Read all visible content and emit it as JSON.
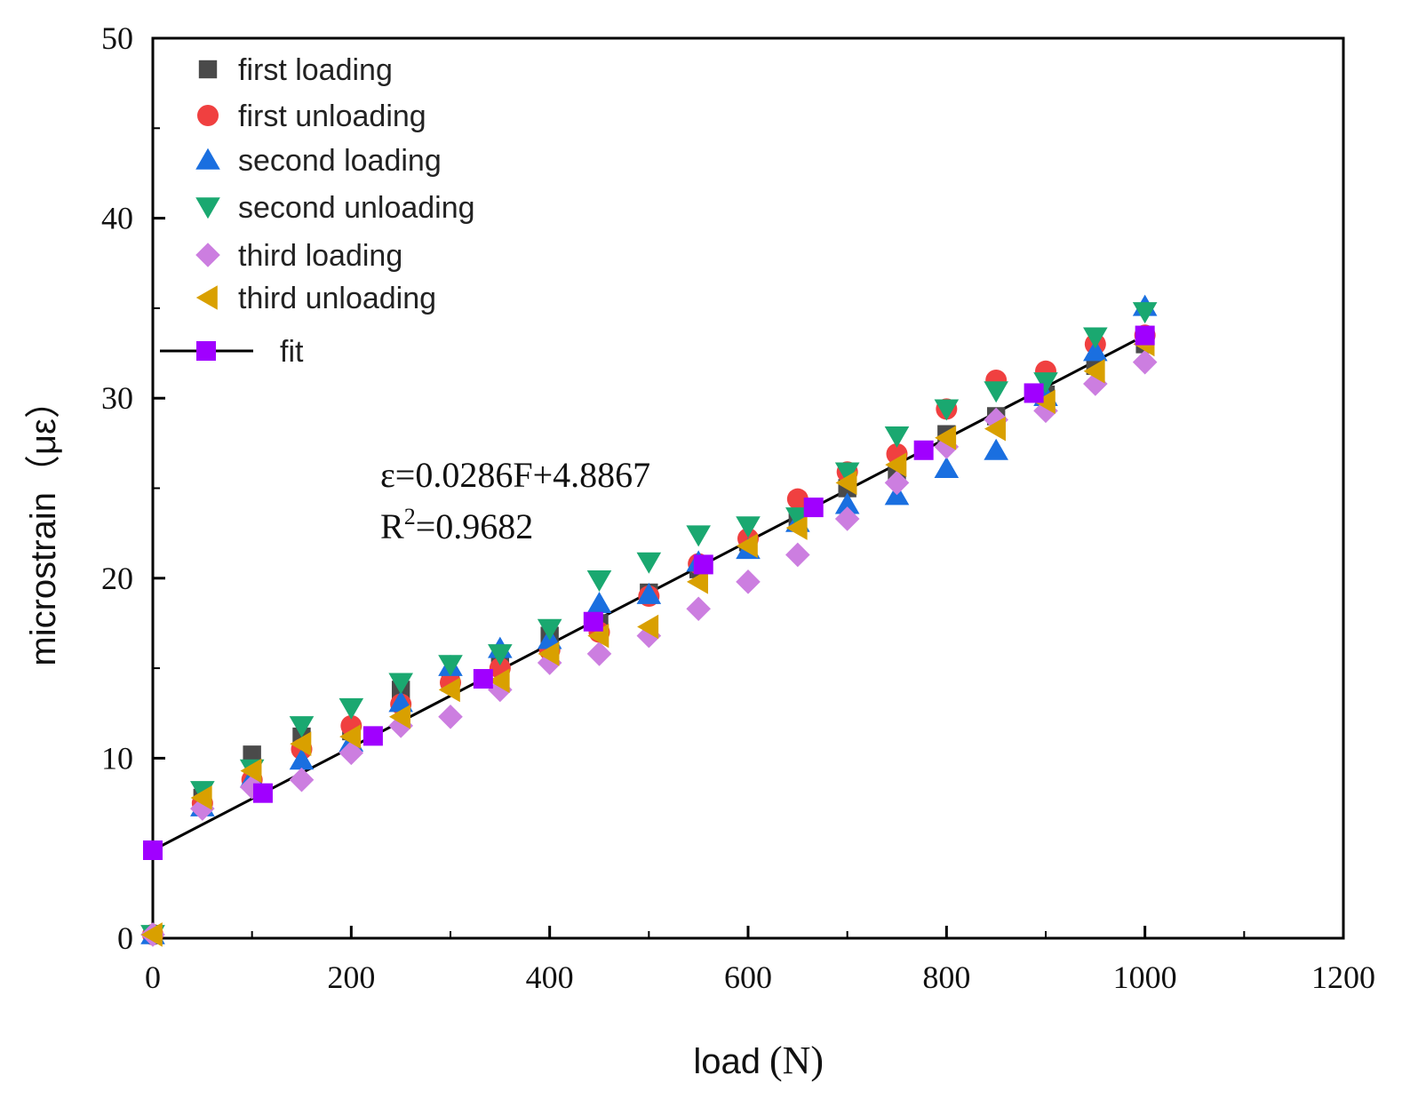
{
  "chart_data": {
    "type": "scatter",
    "title": "",
    "xlabel": "load",
    "xlabel_unit": "(N)",
    "ylabel": "microstrain",
    "ylabel_unit": "（με）",
    "xlim": [
      0,
      1200
    ],
    "ylim": [
      0,
      50
    ],
    "x_ticks": [
      0,
      200,
      400,
      600,
      800,
      1000,
      1200
    ],
    "y_ticks": [
      0,
      10,
      20,
      30,
      40,
      50
    ],
    "legend_position": "top-left",
    "equation": "ε=0.0286F+4.8867",
    "r2_prefix": "R",
    "r2_exp": "2",
    "r2_value": "=0.9682",
    "x": [
      0,
      50,
      100,
      150,
      200,
      250,
      300,
      350,
      400,
      450,
      500,
      550,
      600,
      650,
      700,
      750,
      800,
      850,
      900,
      950,
      1000
    ],
    "series": [
      {
        "name": "first loading",
        "marker": "square",
        "color": "#4a4a4a",
        "values": [
          0.2,
          7.8,
          10.2,
          11.2,
          11.5,
          13.8,
          14.2,
          15.2,
          16.8,
          17.5,
          19.2,
          20.5,
          22.0,
          23.2,
          25.0,
          25.8,
          28.0,
          29.0,
          30.2,
          31.8,
          33.0
        ]
      },
      {
        "name": "first unloading",
        "marker": "circle",
        "color": "#f04040",
        "values": [
          0.2,
          7.5,
          8.8,
          10.5,
          11.8,
          13.0,
          14.2,
          15.0,
          16.0,
          17.0,
          19.0,
          20.8,
          22.2,
          24.4,
          25.9,
          26.9,
          29.4,
          31.0,
          31.5,
          33.0,
          33.5
        ]
      },
      {
        "name": "second loading",
        "marker": "triangle-up",
        "color": "#1a6fe0",
        "values": [
          0.2,
          7.3,
          8.9,
          9.9,
          10.9,
          13.1,
          15.1,
          16.1,
          16.6,
          18.6,
          19.1,
          20.9,
          21.6,
          23.1,
          24.1,
          24.6,
          26.1,
          27.1,
          30.1,
          32.6,
          35.1
        ]
      },
      {
        "name": "second unloading",
        "marker": "triangle-down",
        "color": "#1aa870",
        "values": [
          0.2,
          8.2,
          9.4,
          11.8,
          12.8,
          14.2,
          15.2,
          15.8,
          17.2,
          19.9,
          20.9,
          22.4,
          22.9,
          23.4,
          25.9,
          27.9,
          29.4,
          30.4,
          30.9,
          33.4,
          34.8
        ]
      },
      {
        "name": "third loading",
        "marker": "diamond",
        "color": "#cc7ee0",
        "values": [
          0.2,
          7.2,
          8.4,
          8.8,
          10.3,
          11.8,
          12.3,
          13.8,
          15.3,
          15.8,
          16.8,
          18.3,
          19.8,
          21.3,
          23.3,
          25.3,
          27.3,
          28.8,
          29.3,
          30.8,
          32.0
        ]
      },
      {
        "name": "third unloading",
        "marker": "triangle-left",
        "color": "#d9a000",
        "values": [
          0.2,
          7.8,
          9.3,
          10.8,
          11.2,
          12.3,
          13.8,
          14.3,
          15.8,
          16.8,
          17.3,
          19.8,
          21.8,
          22.8,
          25.3,
          26.3,
          27.8,
          28.3,
          29.8,
          31.5,
          33.0
        ]
      }
    ],
    "fit": {
      "name": "fit",
      "slope": 0.0286,
      "intercept": 4.8867,
      "line_range": [
        0,
        990
      ],
      "color": "#000000",
      "marker_color": "#a000ff",
      "marker_x": [
        0,
        111,
        222,
        333,
        444,
        555,
        666,
        777,
        888,
        1000
      ]
    }
  }
}
